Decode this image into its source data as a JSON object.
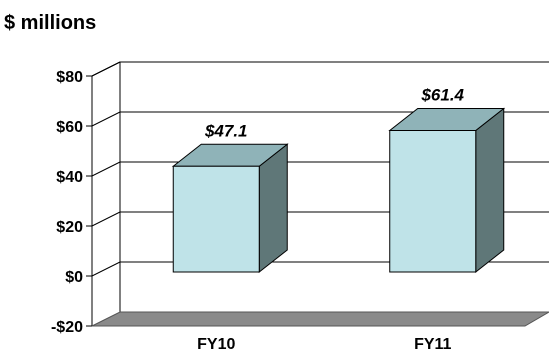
{
  "chart_data": {
    "type": "bar",
    "unit_label": "$ millions",
    "categories": [
      "FY10",
      "FY11"
    ],
    "values": [
      47.1,
      61.4
    ],
    "data_labels": [
      "$47.1",
      "$61.4"
    ],
    "y_ticks": [
      -20,
      0,
      20,
      40,
      60,
      80
    ],
    "y_tick_labels": [
      "-$20",
      "$0",
      "$20",
      "$40",
      "$60",
      "$80"
    ],
    "ylim": [
      -20,
      80
    ],
    "three_d": true,
    "grid": true,
    "legend": "none",
    "colors": {
      "bar_front": "#bfe3e8",
      "bar_top": "#8fb3b8",
      "bar_side": "#5f7778",
      "floor": "#8a8a8a",
      "text": "#000000"
    }
  }
}
